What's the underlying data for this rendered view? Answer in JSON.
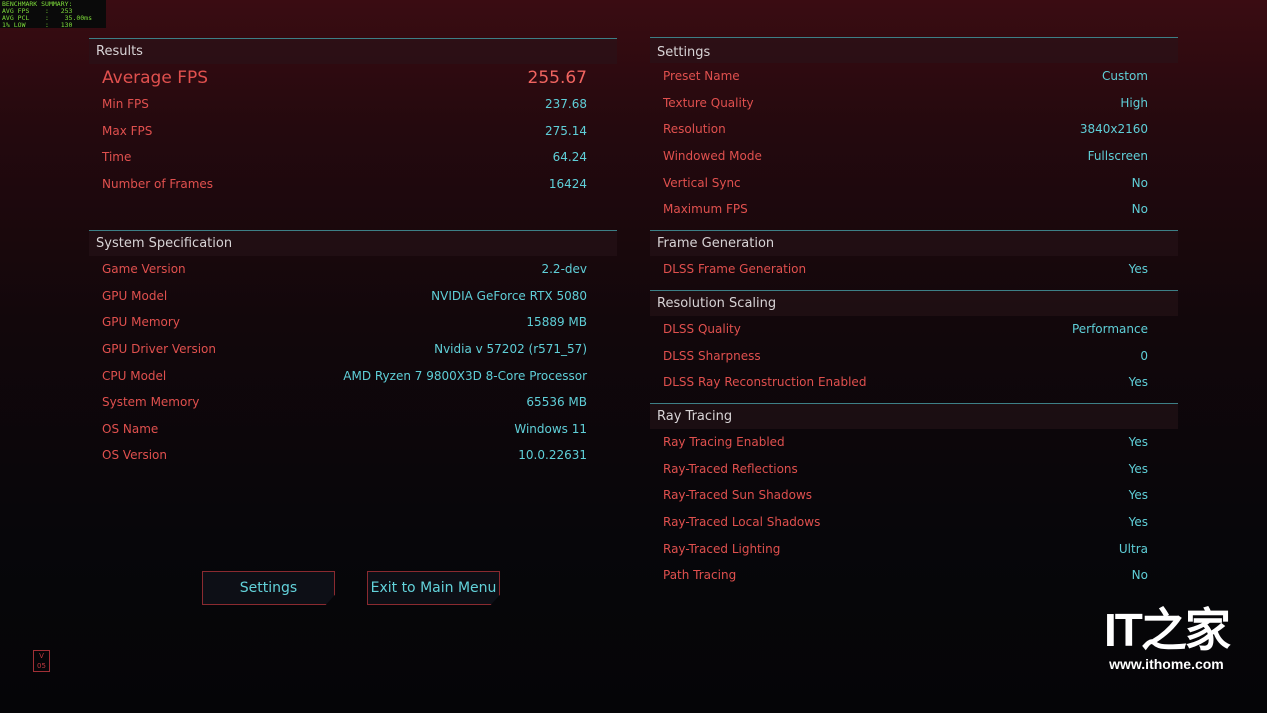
{
  "overlay": {
    "lines": [
      "BENCHMARK SUMMARY:",
      "AVG FPS    :   253",
      "AVG PCL    :    35.00ms",
      "1% LOW     :   130"
    ]
  },
  "left": {
    "results": {
      "title": "Results",
      "average": {
        "label": "Average FPS",
        "value": "255.67"
      },
      "rows": [
        {
          "label": "Min FPS",
          "value": "237.68"
        },
        {
          "label": "Max FPS",
          "value": "275.14"
        },
        {
          "label": "Time",
          "value": "64.24"
        },
        {
          "label": "Number of Frames",
          "value": "16424"
        }
      ]
    },
    "system": {
      "title": "System Specification",
      "rows": [
        {
          "label": "Game Version",
          "value": "2.2-dev"
        },
        {
          "label": "GPU Model",
          "value": "NVIDIA GeForce RTX 5080"
        },
        {
          "label": "GPU Memory",
          "value": "15889 MB"
        },
        {
          "label": "GPU Driver Version",
          "value": "Nvidia v 57202 (r571_57)"
        },
        {
          "label": "CPU Model",
          "value": "AMD Ryzen 7 9800X3D 8-Core Processor"
        },
        {
          "label": "System Memory",
          "value": "65536 MB"
        },
        {
          "label": "OS Name",
          "value": "Windows 11"
        },
        {
          "label": "OS Version",
          "value": "10.0.22631"
        }
      ]
    }
  },
  "right": {
    "settings": {
      "title": "Settings",
      "rows": [
        {
          "label": "Preset Name",
          "value": "Custom"
        },
        {
          "label": "Texture Quality",
          "value": "High"
        },
        {
          "label": "Resolution",
          "value": "3840x2160"
        },
        {
          "label": "Windowed Mode",
          "value": "Fullscreen"
        },
        {
          "label": "Vertical Sync",
          "value": "No"
        },
        {
          "label": "Maximum FPS",
          "value": "No"
        }
      ]
    },
    "framegen": {
      "title": "Frame Generation",
      "rows": [
        {
          "label": "DLSS Frame Generation",
          "value": "Yes"
        }
      ]
    },
    "scaling": {
      "title": "Resolution Scaling",
      "rows": [
        {
          "label": "DLSS Quality",
          "value": "Performance"
        },
        {
          "label": "DLSS Sharpness",
          "value": "0"
        },
        {
          "label": "DLSS Ray Reconstruction Enabled",
          "value": "Yes"
        }
      ]
    },
    "raytracing": {
      "title": "Ray Tracing",
      "rows": [
        {
          "label": "Ray Tracing Enabled",
          "value": "Yes"
        },
        {
          "label": "Ray-Traced Reflections",
          "value": "Yes"
        },
        {
          "label": "Ray-Traced Sun Shadows",
          "value": "Yes"
        },
        {
          "label": "Ray-Traced Local Shadows",
          "value": "Yes"
        },
        {
          "label": "Ray-Traced Lighting",
          "value": "Ultra"
        },
        {
          "label": "Path Tracing",
          "value": "No"
        }
      ]
    }
  },
  "buttons": {
    "settings": "Settings",
    "exit": "Exit to Main Menu"
  },
  "watermark": {
    "logo": "IT之家",
    "url": "www.ithome.com"
  },
  "badge": "V 05",
  "colors": {
    "label": "#e0504e",
    "value": "#5fcfd8",
    "accent_line": "#3d7f86"
  }
}
